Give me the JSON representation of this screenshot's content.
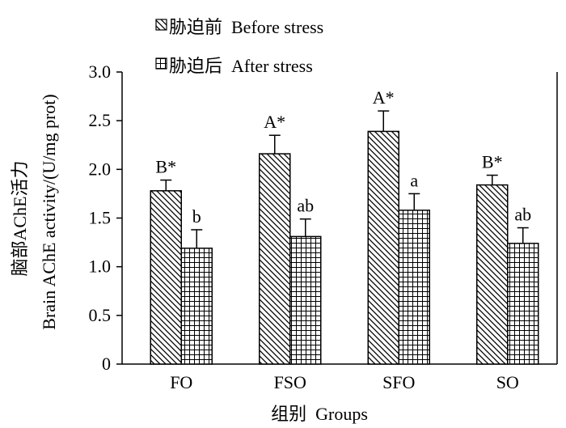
{
  "chart_data": {
    "type": "bar",
    "categories": [
      "FO",
      "FSO",
      "SFO",
      "SO"
    ],
    "series": [
      {
        "name": "胁迫前  Before stress",
        "values": [
          1.78,
          2.16,
          2.39,
          1.84
        ],
        "errors": [
          0.11,
          0.19,
          0.21,
          0.1
        ],
        "labels": [
          "B*",
          "A*",
          "A*",
          "B*"
        ],
        "pattern": "diagonal-hatch"
      },
      {
        "name": "胁迫后  After stress",
        "values": [
          1.19,
          1.31,
          1.58,
          1.24
        ],
        "errors": [
          0.19,
          0.18,
          0.17,
          0.16
        ],
        "labels": [
          "b",
          "ab",
          "a",
          "ab"
        ],
        "pattern": "grid"
      }
    ],
    "ylim": [
      0,
      3.0
    ],
    "yticks": [
      "0",
      "0.5",
      "1.0",
      "1.5",
      "2.0",
      "2.5",
      "3.0"
    ],
    "ylabel_line1": "脑部AChE活力",
    "ylabel_line2": "Brain AChE activity/(U/mg prot)",
    "xlabel": "组别  Groups",
    "legend_position": "top-left",
    "grid": false
  }
}
